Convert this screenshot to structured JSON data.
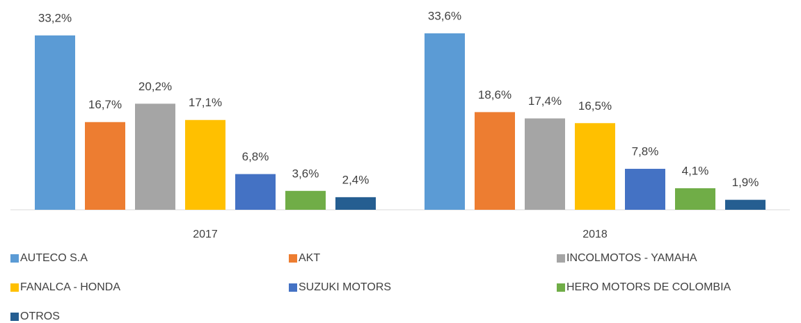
{
  "chart_data": {
    "type": "bar",
    "categories": [
      "2017",
      "2018"
    ],
    "series": [
      {
        "name": "AUTECO S.A",
        "color": "#5b9bd5",
        "values": [
          33.2,
          33.6
        ],
        "value_labels": [
          "33,2%",
          "33,6%"
        ]
      },
      {
        "name": "AKT",
        "color": "#ed7d31",
        "values": [
          16.7,
          18.6
        ],
        "value_labels": [
          "16,7%",
          "18,6%"
        ]
      },
      {
        "name": "INCOLMOTOS - YAMAHA",
        "color": "#a5a5a5",
        "values": [
          20.2,
          17.4
        ],
        "value_labels": [
          "20,2%",
          "17,4%"
        ]
      },
      {
        "name": "FANALCA - HONDA",
        "color": "#ffc000",
        "values": [
          17.1,
          16.5
        ],
        "value_labels": [
          "17,1%",
          "16,5%"
        ]
      },
      {
        "name": "SUZUKI MOTORS",
        "color": "#4472c4",
        "values": [
          6.8,
          7.8
        ],
        "value_labels": [
          "6,8%",
          "7,8%"
        ]
      },
      {
        "name": "HERO MOTORS DE COLOMBIA",
        "color": "#70ad47",
        "values": [
          3.6,
          4.1
        ],
        "value_labels": [
          "3,6%",
          "4,1%"
        ]
      },
      {
        "name": "OTROS",
        "color": "#255e91",
        "values": [
          2.4,
          1.9
        ],
        "value_labels": [
          "2,4%",
          "1,9%"
        ]
      }
    ],
    "legend": "bottom"
  }
}
